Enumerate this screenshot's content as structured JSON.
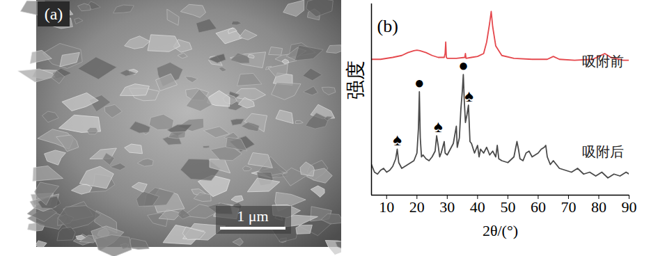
{
  "panel_a": {
    "label": "(a)",
    "scale_bar": "1 μm"
  },
  "chart_data": {
    "type": "line",
    "panel_label": "(b)",
    "x_label": "2θ/(°)",
    "y_label": "强度",
    "xlim": [
      5,
      90
    ],
    "xticks": [
      10,
      20,
      30,
      40,
      50,
      60,
      70,
      80,
      90
    ],
    "ylim": [
      0,
      100
    ],
    "yticks": [],
    "tick_labels": "x",
    "series": [
      {
        "name": "吸附前",
        "color": "#e5484d",
        "x": [
          5,
          8,
          12,
          15,
          17,
          19,
          20,
          21,
          23,
          25,
          27,
          29,
          29.3,
          29.5,
          29.7,
          30,
          33,
          35.8,
          36,
          36.2,
          38,
          40,
          42,
          43,
          44,
          44.5,
          45,
          46,
          48,
          52,
          58,
          63,
          65,
          67,
          72,
          78,
          80,
          82,
          84,
          88,
          90
        ],
        "values": [
          71,
          71,
          72,
          73,
          74.5,
          75.5,
          75.8,
          75.5,
          74.5,
          73,
          72,
          72,
          74,
          80,
          72,
          71.5,
          71.5,
          72,
          74,
          71.5,
          72,
          72.5,
          74,
          80,
          90,
          96,
          88,
          78,
          73,
          71.5,
          71,
          71,
          72.5,
          71,
          70.5,
          71,
          72.5,
          74,
          72,
          70.5,
          70.5
        ]
      },
      {
        "name": "吸附后",
        "color": "#4a4a4a",
        "x": [
          5,
          6,
          7,
          8,
          9,
          10,
          11,
          12,
          13,
          13.5,
          14,
          15,
          16,
          17,
          18,
          19,
          20,
          20.5,
          20.8,
          21.1,
          21.5,
          22,
          23,
          24,
          25,
          26,
          26.5,
          27,
          27.5,
          28,
          29,
          29.3,
          30,
          31,
          32,
          33,
          33.3,
          34,
          34.5,
          35,
          35.3,
          35.6,
          36,
          36.5,
          37,
          37.5,
          38,
          39,
          40,
          40.5,
          41,
          42,
          43,
          44,
          45,
          46,
          46.5,
          47,
          48,
          50,
          52,
          53,
          53.5,
          54,
          55,
          56,
          57,
          58,
          59,
          60,
          61,
          62,
          62.5,
          63,
          64,
          65,
          67,
          69,
          71,
          73,
          75,
          77,
          79,
          81,
          83,
          85,
          87,
          89,
          90
        ],
        "values": [
          16,
          12,
          11,
          13,
          14,
          12,
          13,
          15,
          19,
          24,
          17,
          14,
          15,
          16,
          17,
          18,
          22,
          35,
          54,
          30,
          20,
          21,
          19,
          18,
          20,
          23,
          31,
          26,
          20,
          22,
          28,
          22,
          21,
          24,
          27,
          36,
          25,
          30,
          45,
          55,
          63,
          50,
          38,
          42,
          47,
          28,
          27,
          22,
          26,
          20,
          24,
          22,
          25,
          21,
          23,
          20,
          26,
          19,
          18,
          17,
          20,
          28,
          24,
          19,
          18,
          22,
          23,
          20,
          21,
          22,
          24,
          25,
          26,
          20,
          16,
          18,
          14,
          13,
          12,
          14,
          11,
          12,
          10,
          12,
          9,
          11,
          10,
          12,
          11
        ]
      }
    ],
    "annotations": [
      {
        "text": "●",
        "x": 20.8,
        "y": 56
      },
      {
        "text": "●",
        "x": 35.3,
        "y": 65
      },
      {
        "text": "♠",
        "x": 13.5,
        "y": 26
      },
      {
        "text": "♠",
        "x": 27,
        "y": 33
      },
      {
        "text": "♠",
        "x": 37.2,
        "y": 49
      }
    ]
  }
}
